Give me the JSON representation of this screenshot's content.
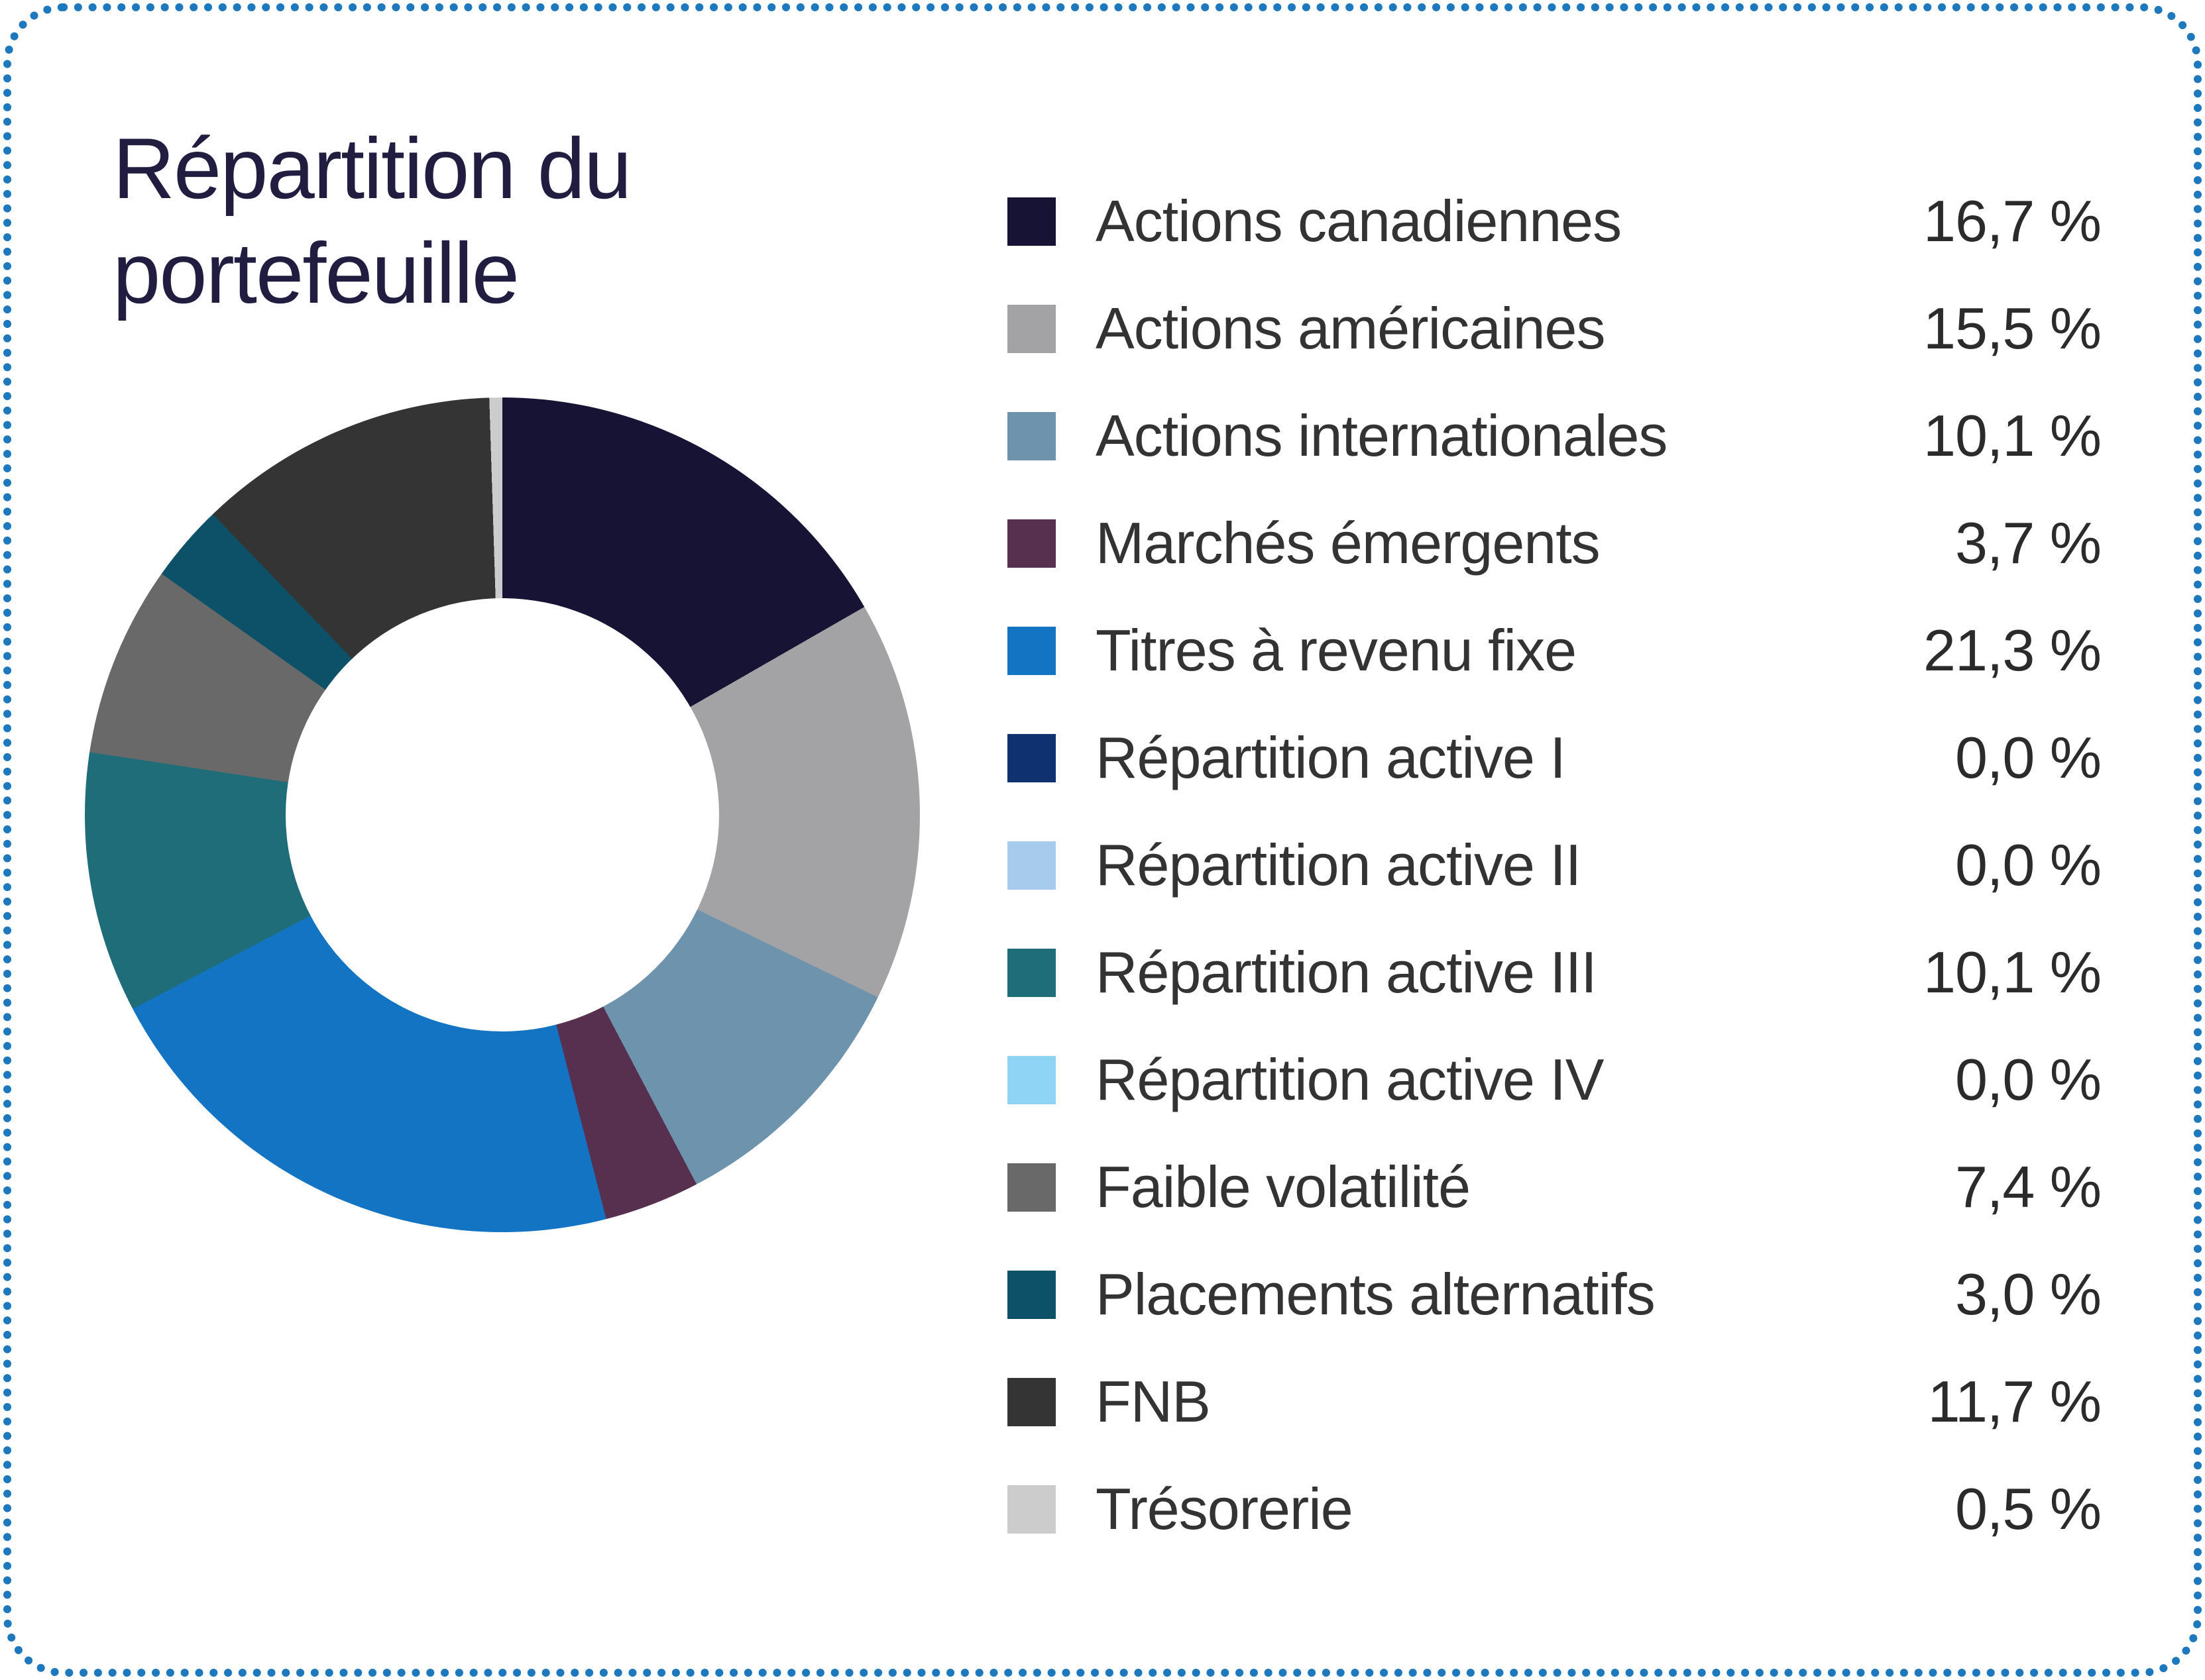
{
  "card": {
    "background": "#ffffff",
    "border_color": "#1d78be",
    "border_style": "dotted"
  },
  "title": "Répartition du portefeuille",
  "chart_data": {
    "type": "pie",
    "subtype": "donut",
    "title": "Répartition du portefeuille",
    "legend_position": "right",
    "start_angle_deg": 0,
    "direction": "clockwise",
    "inner_radius_ratio": 0.52,
    "categories": [
      "Actions canadiennes",
      "Actions américaines",
      "Actions internationales",
      "Marchés émergents",
      "Titres à revenu fixe",
      "Répartition active I",
      "Répartition active II",
      "Répartition active III",
      "Répartition active IV",
      "Faible volatilité",
      "Placements alternatifs",
      "FNB",
      "Trésorerie"
    ],
    "values": [
      16.7,
      15.5,
      10.1,
      3.7,
      21.3,
      0.0,
      0.0,
      10.1,
      0.0,
      7.4,
      3.0,
      11.7,
      0.5
    ],
    "display_values": [
      "16,7 %",
      "15,5 %",
      "10,1 %",
      "3,7 %",
      "21,3 %",
      "0,0 %",
      "0,0 %",
      "10,1 %",
      "0,0 %",
      "7,4 %",
      "3,0 %",
      "11,7 %",
      "0,5 %"
    ],
    "colors": [
      "#171335",
      "#a3a2a4",
      "#6e93ad",
      "#56304e",
      "#1374c4",
      "#10316f",
      "#a6cbec",
      "#1e6d78",
      "#8fd4f5",
      "#6a696a",
      "#0d5169",
      "#343434",
      "#cccccc"
    ]
  }
}
